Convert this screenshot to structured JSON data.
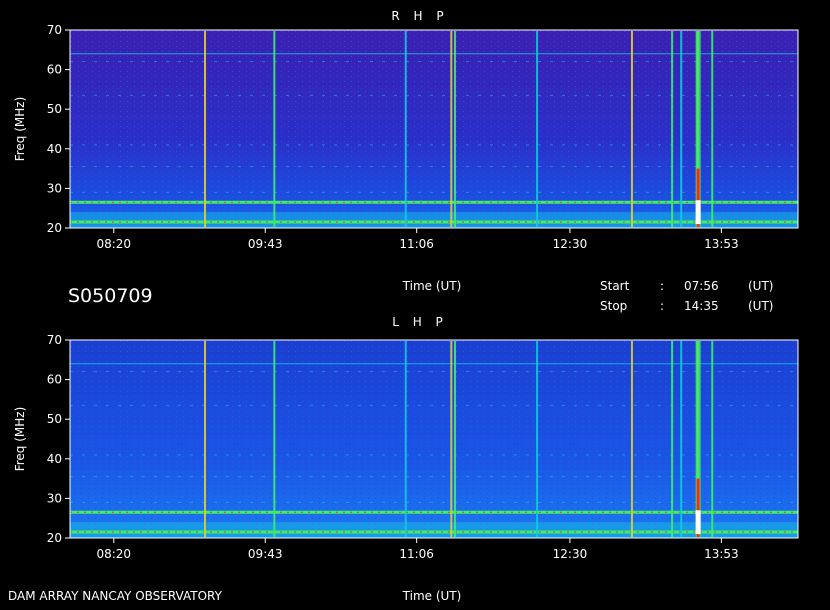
{
  "chart_data": [
    {
      "type": "heatmap",
      "title": "R H P",
      "xlabel": "Time (UT)",
      "ylabel": "Freq (MHz)",
      "ylim": [
        20,
        70
      ],
      "xlim": [
        "07:56",
        "14:35"
      ],
      "x_ticks": [
        "08:20",
        "09:43",
        "11:06",
        "12:30",
        "13:53"
      ],
      "y_ticks": [
        20,
        30,
        40,
        50,
        60,
        70
      ],
      "colors": {
        "background": "#3a1fb0",
        "low": "#1a4fe0",
        "mid": "#14c8e0",
        "high": "#3cf06a",
        "peak": "#ff2a10",
        "max": "#ffffff"
      },
      "bright_bands_mhz": [
        26.5,
        21.5
      ],
      "burst_times": [
        "09:10",
        "09:48",
        "11:00",
        "11:25",
        "11:27",
        "12:12",
        "13:04",
        "13:26",
        "13:31",
        "13:40",
        "13:48"
      ],
      "strong_burst_time": "13:40"
    },
    {
      "type": "heatmap",
      "title": "L H P",
      "xlabel": "Time (UT)",
      "ylabel": "Freq (MHz)",
      "ylim": [
        20,
        70
      ],
      "xlim": [
        "07:56",
        "14:35"
      ],
      "x_ticks": [
        "08:20",
        "09:43",
        "11:06",
        "12:30",
        "13:53"
      ],
      "y_ticks": [
        20,
        30,
        40,
        50,
        60,
        70
      ],
      "colors": {
        "background": "#1a3fd0",
        "low": "#1a4fe0",
        "mid": "#14c8e0",
        "high": "#3cf06a",
        "peak": "#ff2a10",
        "max": "#ffffff"
      },
      "bright_bands_mhz": [
        26.5,
        21.5
      ],
      "burst_times": [
        "09:10",
        "09:48",
        "11:00",
        "11:25",
        "11:27",
        "12:12",
        "13:04",
        "13:26",
        "13:31",
        "13:40",
        "13:48"
      ],
      "strong_burst_time": "13:40"
    }
  ],
  "info": {
    "date_code": "S050709",
    "start_label": "Start",
    "stop_label": "Stop",
    "colon": ":",
    "start_time": "07:56",
    "stop_time": "14:35",
    "unit": "(UT)",
    "footer": "DAM ARRAY   NANCAY OBSERVATORY"
  }
}
